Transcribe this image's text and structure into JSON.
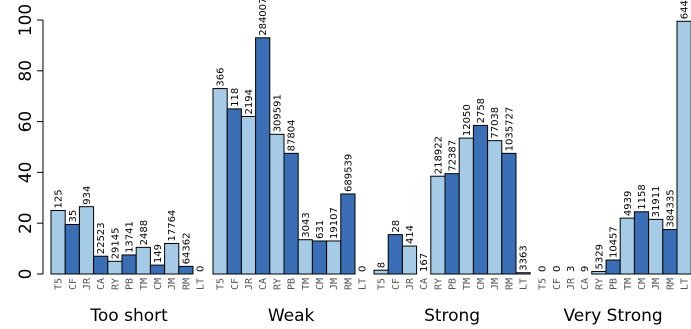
{
  "chart_data": {
    "type": "bar",
    "ylim": [
      0,
      100
    ],
    "yticks": [
      "0",
      "20",
      "40",
      "60",
      "80",
      "100"
    ],
    "categories": [
      "T5",
      "CF",
      "JR",
      "CA",
      "RY",
      "PB",
      "TM",
      "CM",
      "JM",
      "RM",
      "LT"
    ],
    "colors": {
      "light": "#a6cbe6",
      "dark": "#3a6fb5",
      "border": "#000000"
    },
    "groups": [
      {
        "name": "Too short",
        "values": [
          25,
          19.5,
          26.5,
          7,
          5,
          7.5,
          10.5,
          3.5,
          12,
          3,
          0
        ],
        "labels": [
          "125",
          "35",
          "934",
          "22523",
          "29145",
          "13741",
          "2488",
          "149",
          "17764",
          "64362",
          "0"
        ]
      },
      {
        "name": "Weak",
        "values": [
          73,
          65,
          62,
          93,
          55,
          47.5,
          13.5,
          13,
          13,
          31.5,
          0
        ],
        "labels": [
          "366",
          "118",
          "2194",
          "284007",
          "309591",
          "87804",
          "3043",
          "631",
          "19107",
          "689539",
          "0"
        ]
      },
      {
        "name": "Strong",
        "values": [
          1.5,
          15.5,
          11,
          0,
          38.5,
          39.5,
          53.5,
          58.5,
          52.5,
          47.5,
          0.5
        ],
        "labels": [
          "8",
          "28",
          "414",
          "167",
          "218922",
          "72387",
          "12050",
          "2758",
          "77038",
          "1035727",
          "3363"
        ]
      },
      {
        "name": "Very Strong",
        "values": [
          0,
          0,
          0,
          0,
          1,
          5.5,
          22,
          24.5,
          21.5,
          17.5,
          99.5
        ],
        "labels": [
          "0",
          "0",
          "3",
          "9",
          "5329",
          "10457",
          "4939",
          "1158",
          "31911",
          "384335",
          "644"
        ]
      }
    ]
  }
}
